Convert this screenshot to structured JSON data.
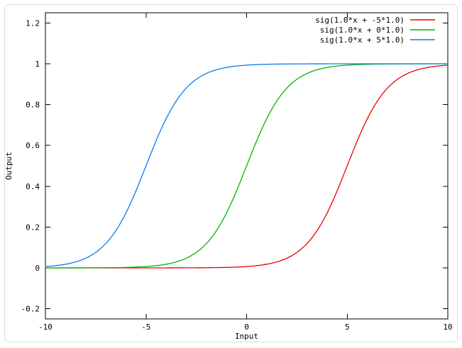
{
  "chart_data": {
    "type": "line",
    "title": "",
    "xlabel": "Input",
    "ylabel": "Output",
    "xlim": [
      -10,
      10
    ],
    "ylim": [
      -0.25,
      1.25
    ],
    "grid": false,
    "legend_position": "top-right-inside",
    "legend_border": false,
    "axis_color": "#000000",
    "background_color": "#ffffff",
    "xticks": [
      {
        "value": -10,
        "label": "-10"
      },
      {
        "value": -5,
        "label": "-5"
      },
      {
        "value": 0,
        "label": "0"
      },
      {
        "value": 5,
        "label": "5"
      },
      {
        "value": 10,
        "label": "10"
      }
    ],
    "yticks": [
      {
        "value": -0.2,
        "label": "-0.2"
      },
      {
        "value": 0,
        "label": "0"
      },
      {
        "value": 0.2,
        "label": "0.2"
      },
      {
        "value": 0.4,
        "label": "0.4"
      },
      {
        "value": 0.6,
        "label": "0.6"
      },
      {
        "value": 0.8,
        "label": "0.8"
      },
      {
        "value": 1,
        "label": "1"
      },
      {
        "value": 1.2,
        "label": "1.2"
      }
    ],
    "series": [
      {
        "label": "sig(1.0*x + -5*1.0)",
        "color": "#ee0000",
        "function": "sigmoid(weight*x + bias)",
        "weight": 1.0,
        "bias": -5.0,
        "anchor_points": [
          {
            "x": -10,
            "y": 0.0
          },
          {
            "x": 0,
            "y": 0.0067
          },
          {
            "x": 3,
            "y": 0.119
          },
          {
            "x": 5,
            "y": 0.5
          },
          {
            "x": 7,
            "y": 0.881
          },
          {
            "x": 10,
            "y": 0.9933
          }
        ]
      },
      {
        "label": "sig(1.0*x +  0*1.0)",
        "color": "#00b800",
        "function": "sigmoid(weight*x + bias)",
        "weight": 1.0,
        "bias": 0.0,
        "anchor_points": [
          {
            "x": -10,
            "y": 0.0
          },
          {
            "x": -5,
            "y": 0.0067
          },
          {
            "x": -2,
            "y": 0.119
          },
          {
            "x": 0,
            "y": 0.5
          },
          {
            "x": 2,
            "y": 0.881
          },
          {
            "x": 10,
            "y": 1.0
          }
        ]
      },
      {
        "label": "sig(1.0*x +  5*1.0)",
        "color": "#0b7cf0",
        "function": "sigmoid(weight*x + bias)",
        "weight": 1.0,
        "bias": 5.0,
        "anchor_points": [
          {
            "x": -10,
            "y": 0.0067
          },
          {
            "x": -7,
            "y": 0.119
          },
          {
            "x": -5,
            "y": 0.5
          },
          {
            "x": -3,
            "y": 0.881
          },
          {
            "x": 0,
            "y": 0.9933
          },
          {
            "x": 10,
            "y": 1.0
          }
        ]
      }
    ]
  }
}
